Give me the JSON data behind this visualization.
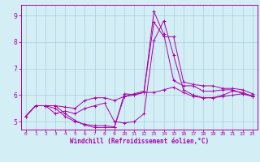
{
  "background_color": "#d4eef5",
  "grid_color": "#a8cfe0",
  "line_color": "#aa00aa",
  "xlabel": "Windchill (Refroidissement éolien,°C)",
  "xlim": [
    -0.5,
    23.5
  ],
  "ylim": [
    4.7,
    9.4
  ],
  "yticks": [
    5,
    6,
    7,
    8,
    9
  ],
  "xticks": [
    0,
    1,
    2,
    3,
    4,
    5,
    6,
    7,
    8,
    9,
    10,
    11,
    12,
    13,
    14,
    15,
    16,
    17,
    18,
    19,
    20,
    21,
    22,
    23
  ],
  "lines": [
    {
      "x": [
        0,
        1,
        2,
        3,
        4,
        5,
        6,
        7,
        8,
        9,
        10,
        11,
        12,
        13,
        14,
        15,
        16,
        17,
        18,
        19,
        20,
        21,
        22,
        23
      ],
      "y": [
        5.2,
        5.6,
        5.6,
        5.6,
        5.3,
        5.05,
        4.87,
        4.78,
        4.78,
        4.78,
        6.05,
        6.02,
        6.1,
        9.15,
        8.3,
        6.55,
        6.35,
        6.35,
        6.15,
        6.15,
        6.2,
        6.2,
        6.05,
        5.98
      ]
    },
    {
      "x": [
        0,
        1,
        2,
        3,
        4,
        5,
        6,
        7,
        8,
        9,
        10,
        11,
        12,
        13,
        14,
        15,
        16,
        17,
        18,
        19,
        20,
        21,
        22,
        23
      ],
      "y": [
        5.2,
        5.6,
        5.6,
        5.3,
        5.4,
        5.3,
        5.5,
        5.6,
        5.7,
        5.0,
        4.95,
        5.0,
        5.3,
        8.05,
        8.8,
        7.5,
        6.2,
        6.0,
        5.9,
        5.9,
        6.0,
        6.15,
        6.1,
        5.95
      ]
    },
    {
      "x": [
        0,
        1,
        2,
        3,
        4,
        5,
        6,
        7,
        8,
        9,
        10,
        11,
        12,
        13,
        14,
        15,
        16,
        17,
        18,
        19,
        20,
        21,
        22,
        23
      ],
      "y": [
        5.2,
        5.6,
        5.6,
        5.6,
        5.55,
        5.5,
        5.8,
        5.9,
        5.9,
        5.8,
        5.95,
        6.05,
        6.15,
        8.75,
        8.2,
        8.2,
        6.5,
        6.4,
        6.35,
        6.35,
        6.25,
        6.25,
        6.2,
        6.05
      ]
    },
    {
      "x": [
        0,
        1,
        2,
        3,
        4,
        5,
        6,
        7,
        8,
        9,
        10,
        11,
        12,
        13,
        14,
        15,
        16,
        17,
        18,
        19,
        20,
        21,
        22,
        23
      ],
      "y": [
        5.2,
        5.6,
        5.6,
        5.5,
        5.2,
        5.0,
        4.9,
        4.85,
        4.85,
        4.8,
        5.95,
        6.0,
        6.1,
        6.1,
        6.2,
        6.3,
        6.1,
        5.95,
        5.9,
        5.9,
        5.95,
        6.0,
        6.05,
        5.95
      ]
    }
  ]
}
